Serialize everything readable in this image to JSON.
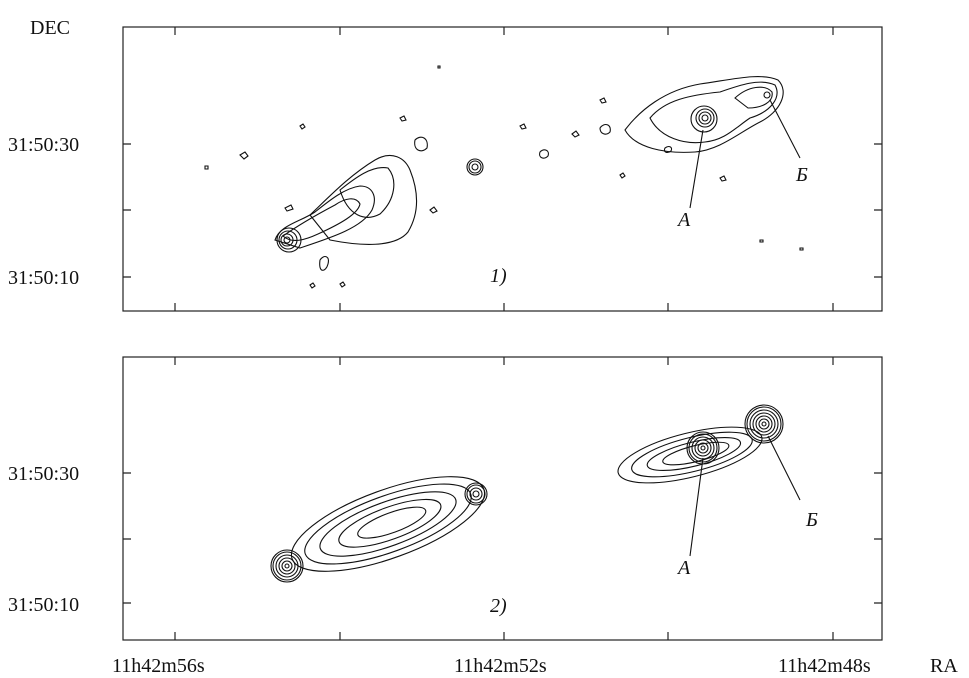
{
  "figure": {
    "y_axis_label": "DEC",
    "x_axis_label": "RA",
    "x_tick_labels": [
      "11h42m56s",
      "11h42m52s",
      "11h42m48s"
    ],
    "panels": [
      {
        "label": "1)",
        "y_tick_labels": [
          "31:50:30",
          "31:50:10"
        ],
        "annotations": [
          "А",
          "Б"
        ]
      },
      {
        "label": "2)",
        "y_tick_labels": [
          "31:50:30",
          "31:50:10"
        ],
        "annotations": [
          "А",
          "Б"
        ]
      }
    ]
  }
}
